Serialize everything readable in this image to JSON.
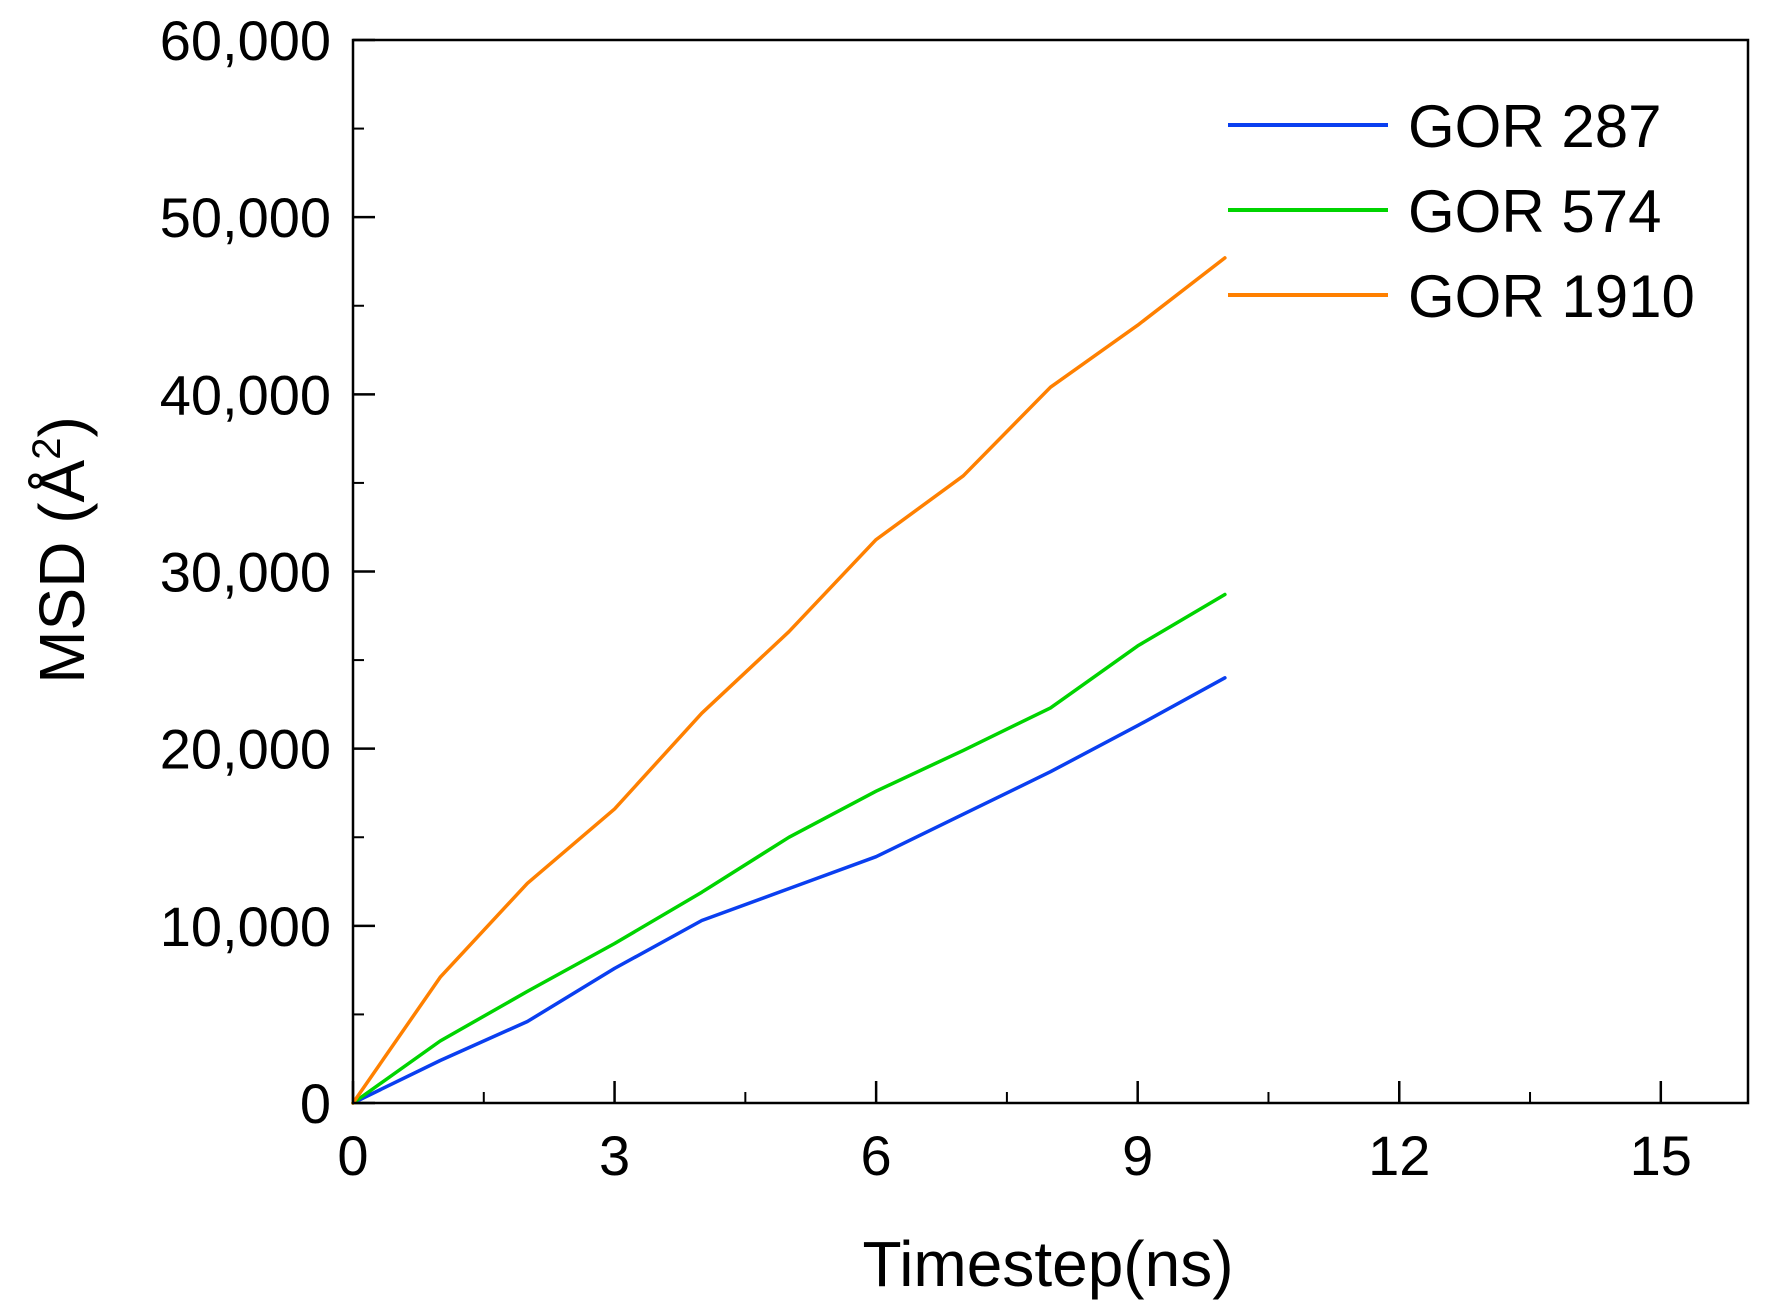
{
  "chart_data": {
    "type": "line",
    "title": "",
    "xlabel": "Timestep(ns)",
    "ylabel_main": "MSD (Å",
    "ylabel_sup": "2",
    "ylabel_close": ")",
    "xlim": [
      0,
      16
    ],
    "ylim": [
      0,
      60000
    ],
    "xticks": [
      0,
      3,
      6,
      9,
      12,
      15
    ],
    "xtick_labels": [
      "0",
      "3",
      "6",
      "9",
      "12",
      "15"
    ],
    "yticks": [
      0,
      10000,
      20000,
      30000,
      40000,
      50000,
      60000
    ],
    "ytick_labels": [
      "0",
      "10,000",
      "20,000",
      "30,000",
      "40,000",
      "50,000",
      "60,000"
    ],
    "grid": false,
    "legend_position": "top-right",
    "x": [
      0,
      1,
      2,
      3,
      4,
      5,
      6,
      7,
      8,
      9,
      10
    ],
    "series": [
      {
        "name": "GOR 287",
        "color": "#0a3ff0",
        "values": [
          0,
          2400,
          4600,
          7600,
          10300,
          12100,
          13900,
          16300,
          18700,
          21300,
          24000
        ]
      },
      {
        "name": "GOR 574",
        "color": "#00d400",
        "values": [
          0,
          3500,
          6300,
          9000,
          11900,
          15000,
          17600,
          19900,
          22300,
          25800,
          28700
        ]
      },
      {
        "name": "GOR 1910",
        "color": "#ff8000",
        "values": [
          0,
          7100,
          12400,
          16600,
          22000,
          26600,
          31800,
          35400,
          40400,
          43900,
          47700
        ]
      }
    ]
  }
}
